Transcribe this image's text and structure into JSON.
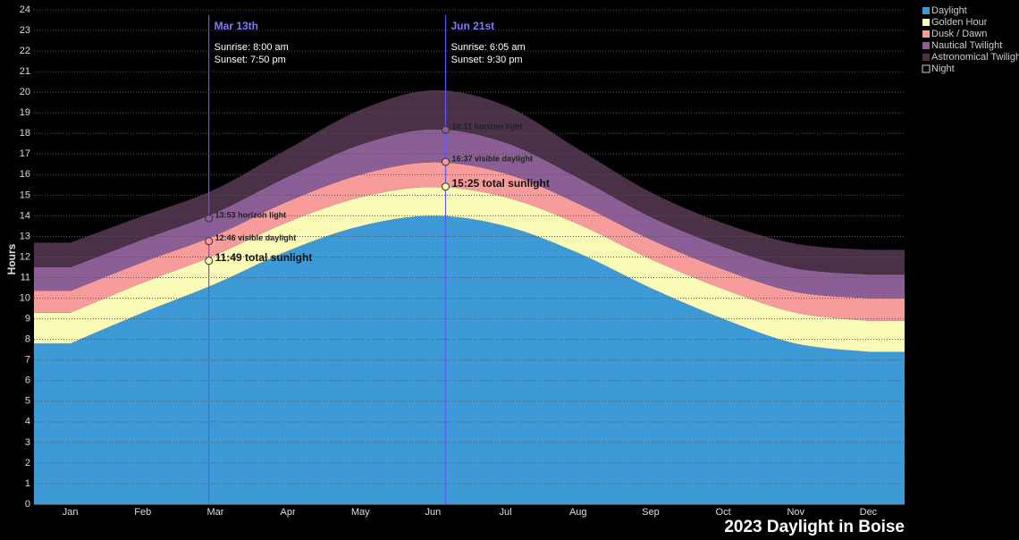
{
  "chart_data": {
    "type": "stacked-area",
    "title": "2023 Daylight in Boise",
    "y_label": "Hours",
    "categories": [
      "Jan",
      "Feb",
      "Mar",
      "Apr",
      "May",
      "Jun",
      "Jul",
      "Aug",
      "Sep",
      "Oct",
      "Nov",
      "Dec"
    ],
    "ylim": [
      0,
      24
    ],
    "yticks": [
      0,
      1,
      2,
      3,
      4,
      5,
      6,
      7,
      8,
      9,
      10,
      11,
      12,
      13,
      14,
      15,
      16,
      17,
      18,
      19,
      20,
      21,
      22,
      23,
      24
    ],
    "grid": true,
    "legend": "top-right",
    "series": [
      {
        "name": "Daylight",
        "color": "#3d9ad6",
        "values": [
          7.8,
          9.3,
          10.7,
          12.3,
          13.5,
          14.0,
          13.5,
          12.2,
          10.5,
          9.0,
          7.8,
          7.4
        ]
      },
      {
        "name": "Golden Hour",
        "color": "#fbfbb8",
        "values": [
          1.5,
          1.45,
          1.4,
          1.4,
          1.4,
          1.4,
          1.4,
          1.4,
          1.4,
          1.45,
          1.5,
          1.5
        ]
      },
      {
        "name": "Dusk / Dawn",
        "color": "#f89b9b",
        "values": [
          1.05,
          1.0,
          0.95,
          1.0,
          1.1,
          1.2,
          1.15,
          1.0,
          0.95,
          0.95,
          1.0,
          1.1
        ]
      },
      {
        "name": "Nautical Twilight",
        "color": "#8b5f95",
        "values": [
          1.15,
          1.1,
          1.1,
          1.2,
          1.45,
          1.6,
          1.5,
          1.25,
          1.1,
          1.1,
          1.15,
          1.15
        ]
      },
      {
        "name": "Astronomical Twilight",
        "color": "#4a3148",
        "values": [
          1.2,
          1.15,
          1.15,
          1.35,
          1.7,
          1.9,
          1.8,
          1.4,
          1.2,
          1.15,
          1.2,
          1.2
        ]
      },
      {
        "name": "Night",
        "color": "#000000",
        "values": [
          11.3,
          10.0,
          8.7,
          6.75,
          4.85,
          3.9,
          4.65,
          6.75,
          8.85,
          10.35,
          11.35,
          11.65
        ]
      }
    ],
    "annotations": [
      {
        "label": "Mar 13th",
        "category": "Mar",
        "day": 13,
        "sunrise": "Sunrise: 8:00 am",
        "sunset": "Sunset: 7:50 pm",
        "points": [
          {
            "value": 11.82,
            "label": "11:49 total sunlight"
          },
          {
            "value": 12.77,
            "label": "12:46 visible daylight"
          },
          {
            "value": 13.88,
            "label": "13:53 horizon light"
          }
        ]
      },
      {
        "label": "Jun 21st",
        "category": "Jun",
        "day": 21,
        "sunrise": "Sunrise: 6:05 am",
        "sunset": "Sunset: 9:30 pm",
        "points": [
          {
            "value": 15.42,
            "label": "15:25 total sunlight"
          },
          {
            "value": 16.62,
            "label": "16:37 visible daylight"
          },
          {
            "value": 18.18,
            "label": "18:11 horizon light"
          }
        ]
      }
    ]
  }
}
